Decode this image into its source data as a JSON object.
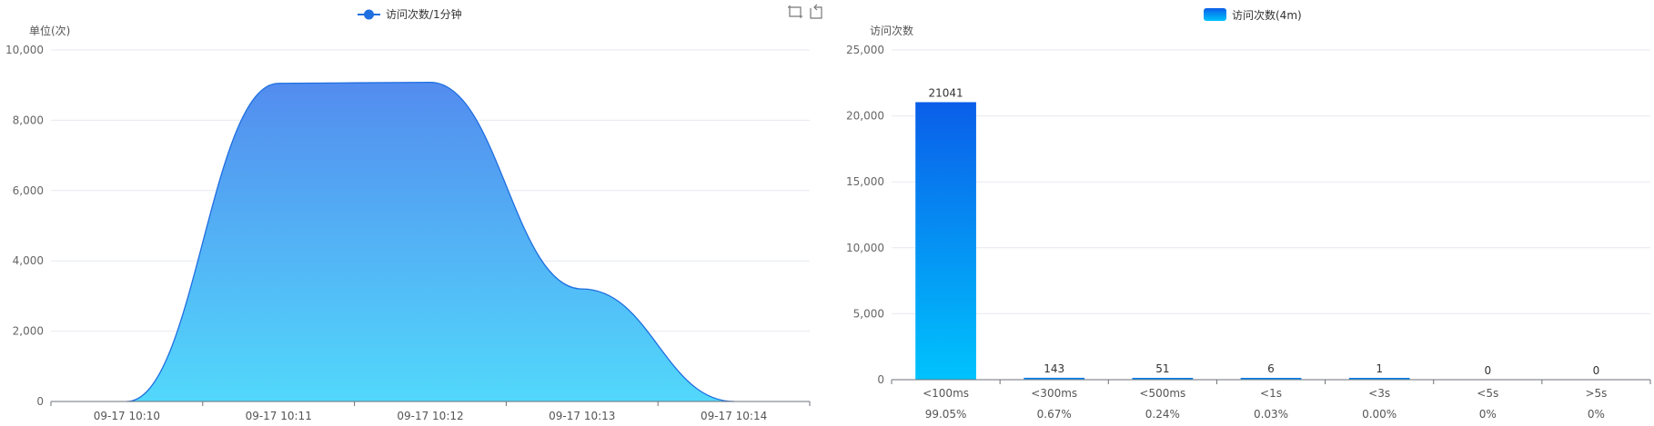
{
  "chart_data": [
    {
      "type": "area",
      "legend": {
        "label": "访问次数/1分钟",
        "position": "top-center"
      },
      "ylabel": "单位(次)",
      "ylim": [
        0,
        10000
      ],
      "y_ticks": [
        "0",
        "2,000",
        "4,000",
        "6,000",
        "8,000",
        "10,000"
      ],
      "categories": [
        "09-17 10:10",
        "09-17 10:11",
        "09-17 10:12",
        "09-17 10:13",
        "09-17 10:14"
      ],
      "values": [
        0,
        9050,
        9080,
        3200,
        0
      ],
      "grid": true,
      "colors": {
        "line": "#1f6fe0",
        "fill_top": "#4a86ee",
        "fill_bottom": "#49d6fb"
      },
      "toolbox": [
        "zoom-select-icon",
        "zoom-reset-icon"
      ]
    },
    {
      "type": "bar",
      "legend": {
        "label": "访问次数(4m)",
        "position": "top-center"
      },
      "ylabel": "访问次数",
      "ylim": [
        0,
        25000
      ],
      "y_ticks": [
        "0",
        "5,000",
        "10,000",
        "15,000",
        "20,000",
        "25,000"
      ],
      "categories": [
        "<100ms",
        "<300ms",
        "<500ms",
        "<1s",
        "<3s",
        "<5s",
        ">5s"
      ],
      "values": [
        21041,
        143,
        51,
        6,
        1,
        0,
        0
      ],
      "data_labels": [
        "21041",
        "143",
        "51",
        "6",
        "1",
        "0",
        "0"
      ],
      "percentages": [
        "99.05%",
        "0.67%",
        "0.24%",
        "0.03%",
        "0.00%",
        "0%",
        "0%"
      ],
      "grid": true,
      "colors": {
        "bar_top": "#0a5ee9",
        "bar_bottom": "#00c3fd"
      }
    }
  ]
}
